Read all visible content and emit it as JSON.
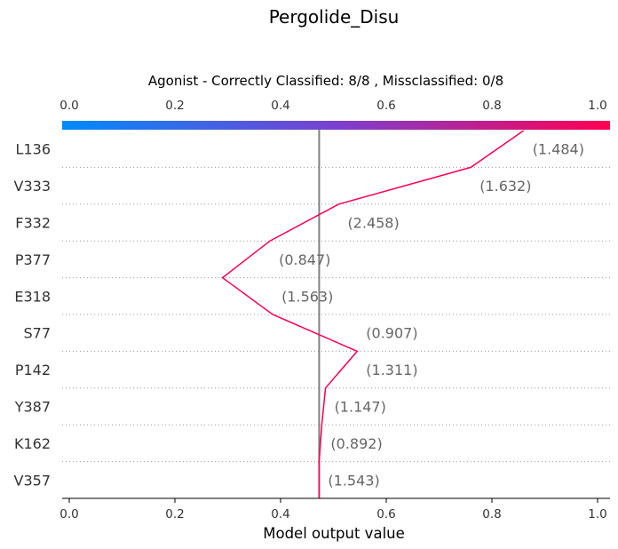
{
  "chart_data": {
    "type": "line",
    "title": "Pergolide_Disu",
    "subtitle": "Agonist - Correctly Classified: 8/8 , Missclassified: 0/8",
    "xlabel": "Model output value",
    "xlim": [
      0.0,
      1.0
    ],
    "x_ticks": [
      "0.0",
      "0.2",
      "0.4",
      "0.6",
      "0.8",
      "1.0"
    ],
    "base_value": 0.473,
    "colorbar": {
      "from": "#008bfb",
      "to": "#ff0052"
    },
    "line_color": "#ff0052",
    "features": [
      {
        "label": "L136",
        "value_text": "(1.484)",
        "output": 0.86
      },
      {
        "label": "V333",
        "value_text": "(1.632)",
        "output": 0.76
      },
      {
        "label": "F332",
        "value_text": "(2.458)",
        "output": 0.51
      },
      {
        "label": "P377",
        "value_text": "(0.847)",
        "output": 0.38
      },
      {
        "label": "E318",
        "value_text": "(1.563)",
        "output": 0.29
      },
      {
        "label": "S77",
        "value_text": "(0.907)",
        "output": 0.385
      },
      {
        "label": "P142",
        "value_text": "(1.311)",
        "output": 0.545
      },
      {
        "label": "Y387",
        "value_text": "(1.147)",
        "output": 0.485
      },
      {
        "label": "K162",
        "value_text": "(0.892)",
        "output": 0.478
      },
      {
        "label": "V357",
        "value_text": "(1.543)",
        "output": 0.473
      }
    ],
    "grid": "dotted-horizontal"
  }
}
